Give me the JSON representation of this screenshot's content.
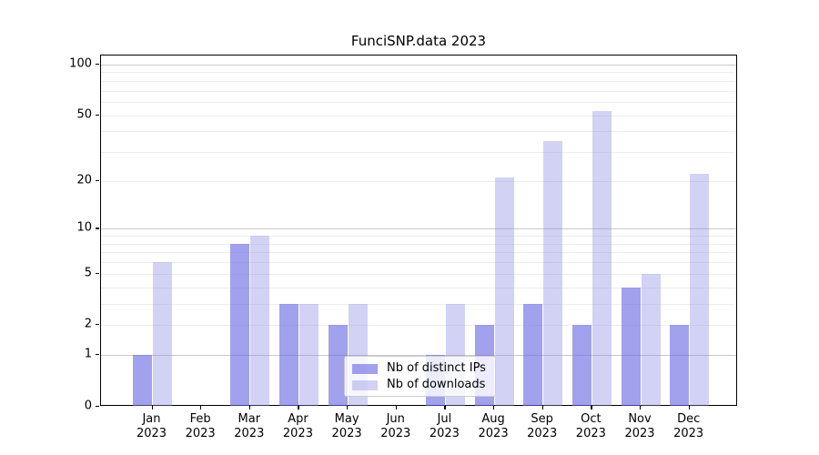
{
  "title": "FunciSNP.data 2023",
  "chart_data": {
    "type": "bar",
    "title": "FunciSNP.data 2023",
    "categories": [
      "Jan 2023",
      "Feb 2023",
      "Mar 2023",
      "Apr 2023",
      "May 2023",
      "Jun 2023",
      "Jul 2023",
      "Aug 2023",
      "Sep 2023",
      "Oct 2023",
      "Nov 2023",
      "Dec 2023"
    ],
    "x_axis": {
      "months": [
        "Jan",
        "Feb",
        "Mar",
        "Apr",
        "May",
        "Jun",
        "Jul",
        "Aug",
        "Sep",
        "Oct",
        "Nov",
        "Dec"
      ],
      "year": "2023"
    },
    "series": [
      {
        "name": "Nb of distinct IPs",
        "color": "rgba(104,104,226,0.62)",
        "values": [
          1,
          0,
          8,
          3,
          2,
          0,
          1,
          2,
          3,
          2,
          4,
          2
        ]
      },
      {
        "name": "Nb of downloads",
        "color": "rgba(137,137,228,0.38)",
        "values": [
          6,
          0,
          9,
          3,
          3,
          0,
          3,
          21,
          35,
          53,
          5,
          22
        ]
      }
    ],
    "yscale": "log1p",
    "ylabel": "",
    "xlabel": "",
    "yticks": [
      0,
      1,
      2,
      5,
      10,
      20,
      50,
      100
    ],
    "gridlines_minor": [
      2,
      3,
      4,
      5,
      6,
      7,
      8,
      9,
      20,
      30,
      40,
      50,
      60,
      70,
      80,
      90
    ],
    "gridlines_major": [
      1,
      10,
      100
    ],
    "ylim": [
      0,
      114
    ],
    "grid": "horizontal",
    "legend_position": "lower-center"
  },
  "legend": {
    "items": [
      "Nb of distinct IPs",
      "Nb of downloads"
    ]
  }
}
